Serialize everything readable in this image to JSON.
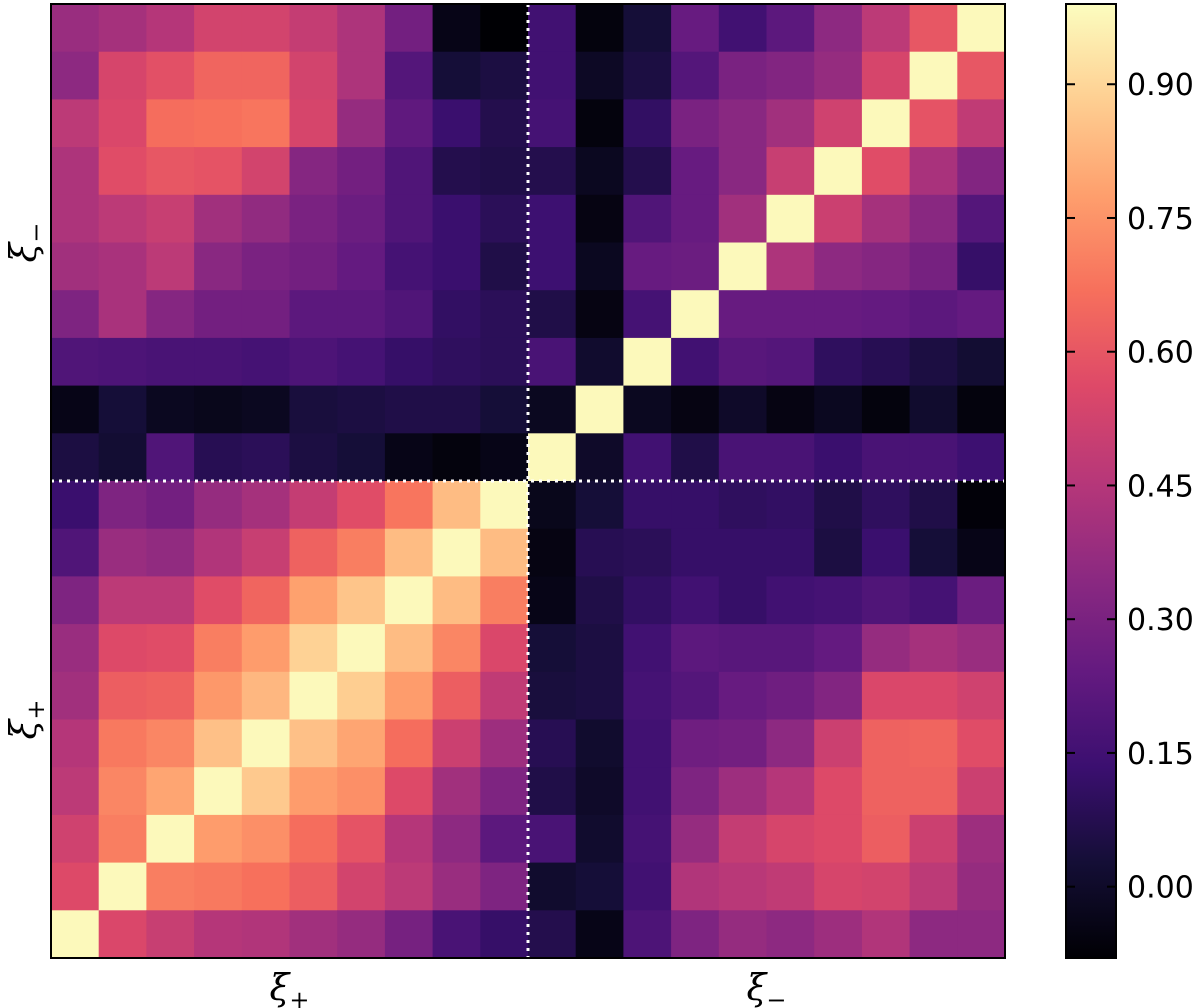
{
  "chart_data": {
    "type": "heatmap",
    "title": "",
    "colormap": "magma",
    "value_range": [
      -0.08,
      0.99
    ],
    "x_blocks": [
      {
        "label": "ξ",
        "subscript": "+",
        "size": 10
      },
      {
        "label": "ξ",
        "subscript": "−",
        "size": 10
      }
    ],
    "y_blocks": [
      {
        "label": "ξ",
        "subscript": "+",
        "size": 10
      },
      {
        "label": "ξ",
        "subscript": "−",
        "size": 10
      }
    ],
    "divider_style": "dotted-white",
    "colorbar": {
      "ticks": [
        0.0,
        0.15,
        0.3,
        0.45,
        0.6,
        0.75,
        0.9
      ],
      "tick_labels": [
        "0.00",
        "0.15",
        "0.30",
        "0.45",
        "0.60",
        "0.75",
        "0.90"
      ]
    },
    "matrix_rows_top_to_bottom": [
      [
        0.38,
        0.41,
        0.45,
        0.53,
        0.53,
        0.49,
        0.43,
        0.28,
        -0.04,
        -0.08,
        0.15,
        -0.06,
        0.03,
        0.25,
        0.15,
        0.22,
        0.35,
        0.47,
        0.6,
        0.98
      ],
      [
        0.35,
        0.54,
        0.58,
        0.64,
        0.64,
        0.53,
        0.43,
        0.2,
        0.03,
        0.05,
        0.15,
        -0.01,
        0.05,
        0.2,
        0.3,
        0.32,
        0.37,
        0.54,
        0.98,
        0.6
      ],
      [
        0.47,
        0.55,
        0.66,
        0.67,
        0.68,
        0.54,
        0.37,
        0.23,
        0.13,
        0.07,
        0.16,
        -0.06,
        0.11,
        0.3,
        0.34,
        0.4,
        0.52,
        0.98,
        0.59,
        0.48
      ],
      [
        0.43,
        0.57,
        0.6,
        0.59,
        0.53,
        0.33,
        0.28,
        0.19,
        0.07,
        0.06,
        0.07,
        -0.02,
        0.07,
        0.25,
        0.34,
        0.5,
        0.98,
        0.57,
        0.42,
        0.32
      ],
      [
        0.43,
        0.47,
        0.5,
        0.4,
        0.36,
        0.3,
        0.26,
        0.19,
        0.13,
        0.09,
        0.14,
        -0.05,
        0.19,
        0.25,
        0.4,
        0.98,
        0.51,
        0.41,
        0.34,
        0.2
      ],
      [
        0.4,
        0.42,
        0.47,
        0.34,
        0.3,
        0.28,
        0.24,
        0.16,
        0.13,
        0.06,
        0.14,
        -0.02,
        0.25,
        0.26,
        0.98,
        0.43,
        0.35,
        0.33,
        0.29,
        0.12
      ],
      [
        0.31,
        0.42,
        0.33,
        0.28,
        0.28,
        0.22,
        0.22,
        0.19,
        0.11,
        0.09,
        0.06,
        -0.05,
        0.16,
        0.98,
        0.25,
        0.25,
        0.25,
        0.24,
        0.22,
        0.24
      ],
      [
        0.19,
        0.18,
        0.17,
        0.17,
        0.16,
        0.18,
        0.16,
        0.12,
        0.1,
        0.09,
        0.17,
        0.01,
        0.98,
        0.15,
        0.21,
        0.2,
        0.1,
        0.08,
        0.05,
        0.02
      ],
      [
        -0.04,
        0.03,
        -0.02,
        -0.03,
        -0.02,
        0.04,
        0.05,
        0.06,
        0.06,
        0.03,
        -0.02,
        0.98,
        -0.02,
        -0.05,
        0.0,
        -0.05,
        -0.02,
        -0.06,
        0.01,
        -0.06
      ],
      [
        0.05,
        0.02,
        0.19,
        0.08,
        0.09,
        0.05,
        0.03,
        -0.04,
        -0.06,
        -0.04,
        0.98,
        0.0,
        0.15,
        0.06,
        0.17,
        0.17,
        0.13,
        0.17,
        0.17,
        0.14
      ],
      [
        0.13,
        0.31,
        0.28,
        0.37,
        0.41,
        0.49,
        0.57,
        0.68,
        0.84,
        0.98,
        -0.03,
        0.03,
        0.12,
        0.12,
        0.1,
        0.11,
        0.06,
        0.1,
        0.06,
        -0.07
      ],
      [
        0.19,
        0.38,
        0.36,
        0.44,
        0.5,
        0.63,
        0.7,
        0.84,
        0.98,
        0.84,
        -0.05,
        0.08,
        0.09,
        0.12,
        0.12,
        0.12,
        0.05,
        0.13,
        0.03,
        -0.04
      ],
      [
        0.31,
        0.47,
        0.47,
        0.57,
        0.64,
        0.78,
        0.86,
        0.98,
        0.84,
        0.7,
        -0.04,
        0.06,
        0.11,
        0.15,
        0.12,
        0.15,
        0.16,
        0.19,
        0.16,
        0.26
      ],
      [
        0.38,
        0.56,
        0.57,
        0.7,
        0.77,
        0.89,
        0.98,
        0.84,
        0.72,
        0.55,
        0.03,
        0.05,
        0.15,
        0.22,
        0.21,
        0.21,
        0.24,
        0.37,
        0.41,
        0.38
      ],
      [
        0.4,
        0.62,
        0.63,
        0.76,
        0.83,
        0.98,
        0.88,
        0.77,
        0.62,
        0.48,
        0.04,
        0.05,
        0.16,
        0.2,
        0.25,
        0.27,
        0.32,
        0.55,
        0.55,
        0.52
      ],
      [
        0.45,
        0.69,
        0.72,
        0.85,
        0.98,
        0.85,
        0.79,
        0.66,
        0.51,
        0.39,
        0.08,
        0.01,
        0.15,
        0.27,
        0.28,
        0.35,
        0.51,
        0.63,
        0.64,
        0.57
      ],
      [
        0.47,
        0.72,
        0.79,
        0.98,
        0.87,
        0.77,
        0.74,
        0.56,
        0.4,
        0.31,
        0.06,
        0.0,
        0.15,
        0.31,
        0.39,
        0.45,
        0.56,
        0.63,
        0.63,
        0.51
      ],
      [
        0.52,
        0.7,
        0.98,
        0.77,
        0.74,
        0.66,
        0.59,
        0.45,
        0.35,
        0.22,
        0.17,
        0.01,
        0.16,
        0.37,
        0.49,
        0.54,
        0.56,
        0.62,
        0.51,
        0.39
      ],
      [
        0.56,
        0.98,
        0.7,
        0.69,
        0.67,
        0.62,
        0.53,
        0.47,
        0.38,
        0.31,
        0.01,
        0.03,
        0.15,
        0.44,
        0.46,
        0.48,
        0.54,
        0.53,
        0.47,
        0.37
      ],
      [
        0.98,
        0.55,
        0.5,
        0.45,
        0.44,
        0.4,
        0.37,
        0.29,
        0.17,
        0.12,
        0.07,
        -0.04,
        0.18,
        0.31,
        0.37,
        0.35,
        0.39,
        0.44,
        0.35,
        0.35
      ]
    ]
  }
}
